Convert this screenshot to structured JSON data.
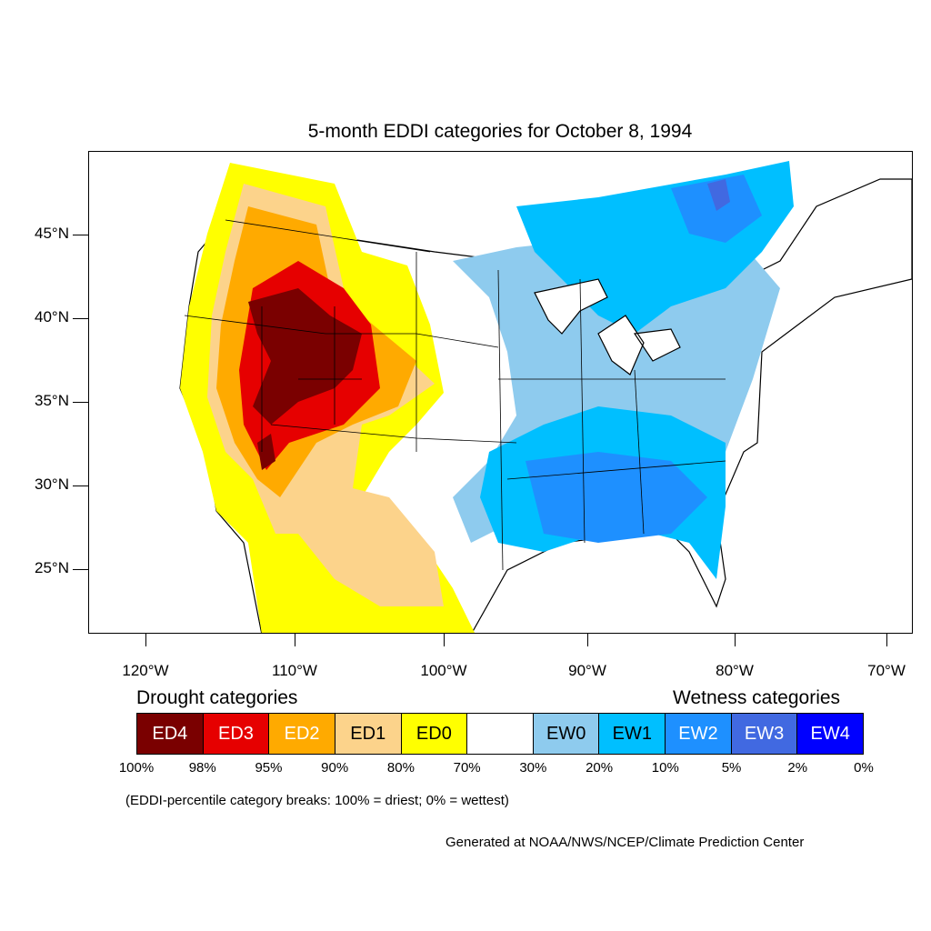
{
  "title": "5-month EDDI categories for October 8, 1994",
  "lat_labels": [
    "45°N",
    "40°N",
    "35°N",
    "30°N",
    "25°N"
  ],
  "lon_labels": [
    "120°W",
    "110°W",
    "100°W",
    "90°W",
    "80°W",
    "70°W"
  ],
  "legend": {
    "drought_heading": "Drought categories",
    "wetness_heading": "Wetness categories",
    "categories": [
      {
        "label": "ED4",
        "color": "#7a0000",
        "text_color": "#ffffff"
      },
      {
        "label": "ED3",
        "color": "#e60000",
        "text_color": "#ffffff"
      },
      {
        "label": "ED2",
        "color": "#ffaa00",
        "text_color": "#ffffff"
      },
      {
        "label": "ED1",
        "color": "#fcd38b",
        "text_color": "#000000"
      },
      {
        "label": "ED0",
        "color": "#ffff00",
        "text_color": "#000000"
      },
      {
        "label": "",
        "color": "#ffffff",
        "text_color": "#000000"
      },
      {
        "label": "EW0",
        "color": "#8ecbee",
        "text_color": "#000000"
      },
      {
        "label": "EW1",
        "color": "#00bfff",
        "text_color": "#000000"
      },
      {
        "label": "EW2",
        "color": "#1e90ff",
        "text_color": "#ffffff"
      },
      {
        "label": "EW3",
        "color": "#4169e1",
        "text_color": "#ffffff"
      },
      {
        "label": "EW4",
        "color": "#0000ff",
        "text_color": "#ffffff"
      }
    ],
    "breaks": [
      "100%",
      "98%",
      "95%",
      "90%",
      "80%",
      "70%",
      "30%",
      "20%",
      "10%",
      "5%",
      "2%",
      "0%"
    ]
  },
  "note": "(EDDI-percentile category breaks: 100% = driest; 0% = wettest)",
  "credit": "Generated at NOAA/NWS/NCEP/Climate Prediction Center"
}
